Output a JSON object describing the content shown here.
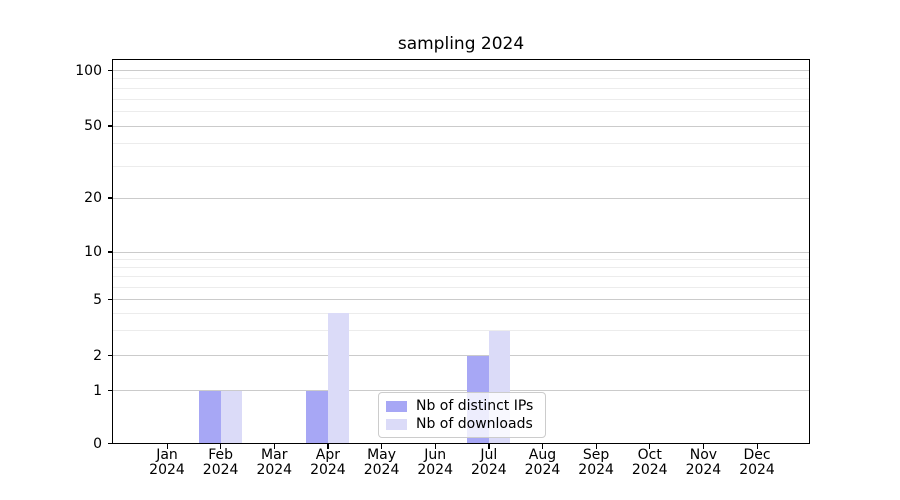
{
  "chart_data": {
    "type": "bar",
    "title": "sampling 2024",
    "categories": [
      "Jan 2024",
      "Feb 2024",
      "Mar 2024",
      "Apr 2024",
      "May 2024",
      "Jun 2024",
      "Jul 2024",
      "Aug 2024",
      "Sep 2024",
      "Oct 2024",
      "Nov 2024",
      "Dec 2024"
    ],
    "x_tick_top": [
      "Jan",
      "Feb",
      "Mar",
      "Apr",
      "May",
      "Jun",
      "Jul",
      "Aug",
      "Sep",
      "Oct",
      "Nov",
      "Dec"
    ],
    "x_tick_bottom": "2024",
    "series": [
      {
        "name": "Nb of distinct IPs",
        "color": "#a7a7f5",
        "values": [
          0,
          1,
          0,
          1,
          0,
          0,
          2,
          0,
          0,
          0,
          0,
          0
        ]
      },
      {
        "name": "Nb of downloads",
        "color": "#dbdbf8",
        "values": [
          0,
          1,
          0,
          4,
          0,
          0,
          3,
          0,
          0,
          0,
          0,
          0
        ]
      }
    ],
    "y_axis": {
      "scale": "symlog",
      "ylim": [
        0,
        115
      ],
      "major_ticks": [
        0,
        1,
        2,
        5,
        10,
        20,
        50,
        100
      ],
      "major_tick_labels": [
        "0",
        "1",
        "2",
        "5",
        "10",
        "20",
        "50",
        "100"
      ],
      "minor_gridlines": [
        3,
        4,
        6,
        7,
        8,
        9,
        30,
        40,
        60,
        70,
        80,
        90
      ]
    },
    "grid": true,
    "legend_position": "lower center inside plot"
  },
  "colors": {
    "distinct_ips_bar": "#a7a7f5",
    "downloads_bar": "#dbdbf8",
    "major_grid": "#cbcbcb",
    "minor_grid": "#ececec",
    "axis_line": "#000000",
    "legend_border": "#cccccc",
    "background": "#ffffff"
  }
}
